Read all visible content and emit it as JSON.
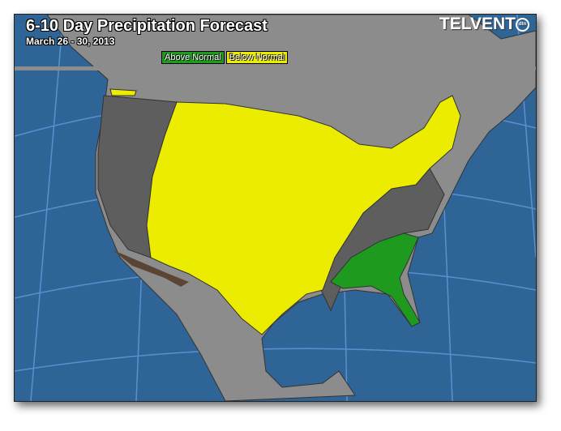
{
  "title": "6-10 Day Precipitation Forecast",
  "date_range": "March 26 - 30, 2013",
  "logo": {
    "text": "TELVENT",
    "badge": "dtn"
  },
  "legend": [
    {
      "label": "Above Normal",
      "color": "#1e9a1e"
    },
    {
      "label": "Below Normal",
      "color": "#ecec00"
    }
  ],
  "colors": {
    "ocean": "#2f6596",
    "land": "#8c8c8c",
    "near_normal": "#5e5e5e",
    "above_normal": "#1e9a1e",
    "below_normal": "#ecec00"
  }
}
